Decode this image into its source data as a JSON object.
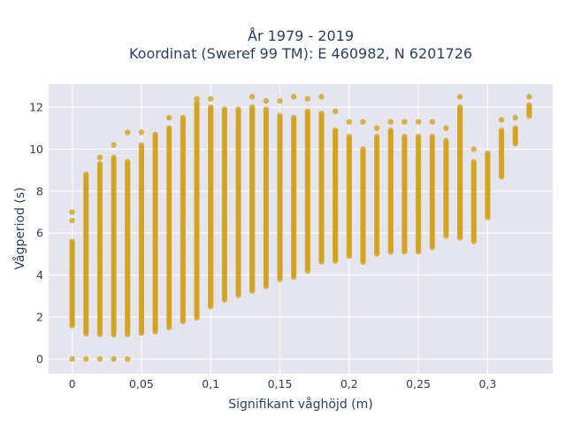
{
  "chart_data": {
    "type": "scatter",
    "title_line1": "År 1979 - 2019",
    "title_line2": "Koordinat (Sweref 99 TM): E 460982, N 6201726",
    "xlabel": "Signifikant våghöjd (m)",
    "ylabel": "Vågperiod (s)",
    "xlim": [
      -0.017,
      0.347
    ],
    "ylim": [
      -0.7,
      13.1
    ],
    "x_ticks": [
      0,
      0.05,
      0.1,
      0.15,
      0.2,
      0.25,
      0.3
    ],
    "x_tick_labels": [
      "0",
      "0,05",
      "0,1",
      "0,15",
      "0,2",
      "0,25",
      "0,3"
    ],
    "y_ticks": [
      0,
      2,
      4,
      6,
      8,
      10,
      12
    ],
    "y_tick_labels": [
      "0",
      "2",
      "4",
      "6",
      "8",
      "10",
      "12"
    ],
    "grid": true,
    "legend": "none",
    "colors": {
      "marker": "#d4a017",
      "plot_bg": "#e5e5ef",
      "grid": "#ffffff",
      "text": "#2a3f5f"
    },
    "series": [
      {
        "marker_color": "#d4a017",
        "columns": [
          {
            "x": 0.0,
            "y_min": 1.5,
            "y_max": 5.6,
            "extra_y": [
              0.0,
              6.6,
              7.0
            ]
          },
          {
            "x": 0.01,
            "y_min": 1.2,
            "y_max": 8.8,
            "extra_y": [
              0.0
            ]
          },
          {
            "x": 0.02,
            "y_min": 1.1,
            "y_max": 9.3,
            "extra_y": [
              0.0,
              9.6
            ]
          },
          {
            "x": 0.03,
            "y_min": 1.1,
            "y_max": 9.6,
            "extra_y": [
              0.0,
              10.2
            ]
          },
          {
            "x": 0.04,
            "y_min": 1.1,
            "y_max": 9.4,
            "extra_y": [
              0.0,
              10.8
            ]
          },
          {
            "x": 0.05,
            "y_min": 1.2,
            "y_max": 10.2,
            "extra_y": [
              10.8
            ]
          },
          {
            "x": 0.06,
            "y_min": 1.3,
            "y_max": 10.7,
            "extra_y": []
          },
          {
            "x": 0.07,
            "y_min": 1.5,
            "y_max": 11.0,
            "extra_y": [
              11.5
            ]
          },
          {
            "x": 0.08,
            "y_min": 1.7,
            "y_max": 11.5,
            "extra_y": []
          },
          {
            "x": 0.09,
            "y_min": 1.9,
            "y_max": 12.2,
            "extra_y": [
              12.4
            ]
          },
          {
            "x": 0.1,
            "y_min": 2.4,
            "y_max": 12.0,
            "extra_y": [
              12.4
            ]
          },
          {
            "x": 0.11,
            "y_min": 2.8,
            "y_max": 11.9,
            "extra_y": []
          },
          {
            "x": 0.12,
            "y_min": 3.0,
            "y_max": 11.9,
            "extra_y": []
          },
          {
            "x": 0.13,
            "y_min": 3.2,
            "y_max": 12.0,
            "extra_y": [
              12.5
            ]
          },
          {
            "x": 0.14,
            "y_min": 3.4,
            "y_max": 11.9,
            "extra_y": [
              12.3
            ]
          },
          {
            "x": 0.15,
            "y_min": 3.7,
            "y_max": 11.6,
            "extra_y": [
              12.3
            ]
          },
          {
            "x": 0.16,
            "y_min": 3.9,
            "y_max": 11.5,
            "extra_y": [
              12.5
            ]
          },
          {
            "x": 0.17,
            "y_min": 4.2,
            "y_max": 11.8,
            "extra_y": [
              12.4
            ]
          },
          {
            "x": 0.18,
            "y_min": 4.6,
            "y_max": 11.7,
            "extra_y": [
              12.5
            ]
          },
          {
            "x": 0.19,
            "y_min": 4.6,
            "y_max": 10.9,
            "extra_y": [
              11.8
            ]
          },
          {
            "x": 0.2,
            "y_min": 4.8,
            "y_max": 10.6,
            "extra_y": [
              11.3
            ]
          },
          {
            "x": 0.21,
            "y_min": 4.6,
            "y_max": 10.0,
            "extra_y": [
              11.3
            ]
          },
          {
            "x": 0.22,
            "y_min": 5.0,
            "y_max": 10.6,
            "extra_y": [
              11.0
            ]
          },
          {
            "x": 0.23,
            "y_min": 5.0,
            "y_max": 10.9,
            "extra_y": [
              11.3
            ]
          },
          {
            "x": 0.24,
            "y_min": 5.1,
            "y_max": 10.6,
            "extra_y": [
              11.3
            ]
          },
          {
            "x": 0.25,
            "y_min": 5.1,
            "y_max": 10.6,
            "extra_y": [
              11.3
            ]
          },
          {
            "x": 0.26,
            "y_min": 5.3,
            "y_max": 10.6,
            "extra_y": [
              11.3
            ]
          },
          {
            "x": 0.27,
            "y_min": 5.8,
            "y_max": 10.4,
            "extra_y": [
              11.0
            ]
          },
          {
            "x": 0.28,
            "y_min": 5.7,
            "y_max": 12.0,
            "extra_y": [
              12.5
            ]
          },
          {
            "x": 0.29,
            "y_min": 5.6,
            "y_max": 9.4,
            "extra_y": [
              10.0
            ]
          },
          {
            "x": 0.3,
            "y_min": 6.7,
            "y_max": 9.8,
            "extra_y": []
          },
          {
            "x": 0.31,
            "y_min": 8.6,
            "y_max": 10.9,
            "extra_y": [
              11.4
            ]
          },
          {
            "x": 0.32,
            "y_min": 10.2,
            "y_max": 11.0,
            "extra_y": [
              11.5
            ]
          },
          {
            "x": 0.33,
            "y_min": 11.5,
            "y_max": 12.1,
            "extra_y": [
              12.5
            ]
          }
        ]
      }
    ]
  }
}
